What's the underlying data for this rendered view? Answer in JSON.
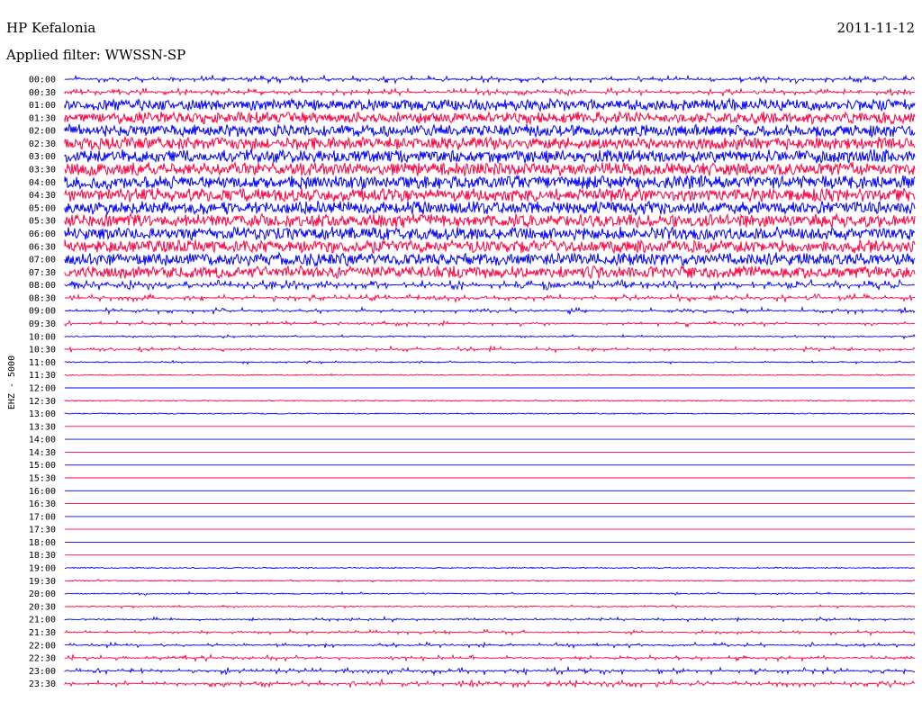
{
  "chart_data": {
    "type": "line",
    "title": "HP Kefalonia",
    "date": "2011-11-12",
    "subtitle": "Applied filter: WWSSN-SP",
    "ylabel": "EHZ - 5000",
    "xlabel": "",
    "grid": false,
    "colors": {
      "series_a": "#0000ff",
      "series_b": "#ff0040"
    },
    "rows": [
      {
        "label": "00:00",
        "activity": 0.55,
        "color": "series_a"
      },
      {
        "label": "00:30",
        "activity": 0.55,
        "color": "series_b"
      },
      {
        "label": "01:00",
        "activity": 0.85,
        "color": "series_a"
      },
      {
        "label": "01:30",
        "activity": 0.85,
        "color": "series_b"
      },
      {
        "label": "02:00",
        "activity": 0.9,
        "color": "series_a"
      },
      {
        "label": "02:30",
        "activity": 0.95,
        "color": "series_b"
      },
      {
        "label": "03:00",
        "activity": 1.0,
        "color": "series_a"
      },
      {
        "label": "03:30",
        "activity": 1.0,
        "color": "series_b"
      },
      {
        "label": "04:00",
        "activity": 1.0,
        "color": "series_a"
      },
      {
        "label": "04:30",
        "activity": 1.0,
        "color": "series_b"
      },
      {
        "label": "05:00",
        "activity": 1.0,
        "color": "series_a"
      },
      {
        "label": "05:30",
        "activity": 1.0,
        "color": "series_b"
      },
      {
        "label": "06:00",
        "activity": 0.95,
        "color": "series_a"
      },
      {
        "label": "06:30",
        "activity": 0.95,
        "color": "series_b"
      },
      {
        "label": "07:00",
        "activity": 0.95,
        "color": "series_a"
      },
      {
        "label": "07:30",
        "activity": 0.9,
        "color": "series_b"
      },
      {
        "label": "08:00",
        "activity": 0.75,
        "color": "series_a"
      },
      {
        "label": "08:30",
        "activity": 0.55,
        "color": "series_b"
      },
      {
        "label": "09:00",
        "activity": 0.4,
        "color": "series_a"
      },
      {
        "label": "09:30",
        "activity": 0.3,
        "color": "series_b"
      },
      {
        "label": "10:00",
        "activity": 0.15,
        "color": "series_a"
      },
      {
        "label": "10:30",
        "activity": 0.3,
        "color": "series_b"
      },
      {
        "label": "11:00",
        "activity": 0.12,
        "color": "series_a"
      },
      {
        "label": "11:30",
        "activity": 0.01,
        "color": "series_b"
      },
      {
        "label": "12:00",
        "activity": 0.0,
        "color": "series_a"
      },
      {
        "label": "12:30",
        "activity": 0.01,
        "color": "series_b"
      },
      {
        "label": "13:00",
        "activity": 0.01,
        "color": "series_a"
      },
      {
        "label": "13:30",
        "activity": 0.0,
        "color": "series_b"
      },
      {
        "label": "14:00",
        "activity": 0.0,
        "color": "series_a"
      },
      {
        "label": "14:30",
        "activity": 0.0,
        "color": "series_b"
      },
      {
        "label": "15:00",
        "activity": 0.0,
        "color": "series_a"
      },
      {
        "label": "15:30",
        "activity": 0.0,
        "color": "series_b"
      },
      {
        "label": "16:00",
        "activity": 0.0,
        "color": "series_a"
      },
      {
        "label": "16:30",
        "activity": 0.0,
        "color": "series_b"
      },
      {
        "label": "17:00",
        "activity": 0.0,
        "color": "series_a"
      },
      {
        "label": "17:30",
        "activity": 0.0,
        "color": "series_b"
      },
      {
        "label": "18:00",
        "activity": 0.0,
        "color": "series_a"
      },
      {
        "label": "18:30",
        "activity": 0.0,
        "color": "series_b"
      },
      {
        "label": "19:00",
        "activity": 0.01,
        "color": "series_a"
      },
      {
        "label": "19:30",
        "activity": 0.05,
        "color": "series_b"
      },
      {
        "label": "20:00",
        "activity": 0.1,
        "color": "series_a"
      },
      {
        "label": "20:30",
        "activity": 0.12,
        "color": "series_b"
      },
      {
        "label": "21:00",
        "activity": 0.2,
        "color": "series_a"
      },
      {
        "label": "21:30",
        "activity": 0.28,
        "color": "series_b"
      },
      {
        "label": "22:00",
        "activity": 0.32,
        "color": "series_a"
      },
      {
        "label": "22:30",
        "activity": 0.38,
        "color": "series_b"
      },
      {
        "label": "23:00",
        "activity": 0.48,
        "color": "series_a"
      },
      {
        "label": "23:30",
        "activity": 0.52,
        "color": "series_b"
      }
    ]
  }
}
